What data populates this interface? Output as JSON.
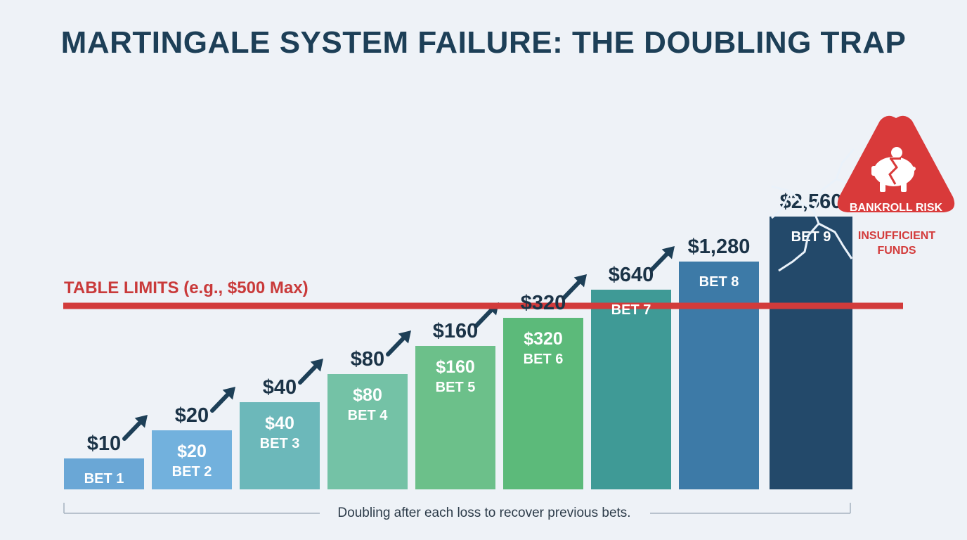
{
  "title": "MARTINGALE SYSTEM FAILURE: THE DOUBLING TRAP",
  "chart_data": {
    "type": "bar",
    "categories": [
      "BET 1",
      "BET 2",
      "BET 3",
      "BET 4",
      "BET 5",
      "BET 6",
      "BET 7",
      "BET 8",
      "BET 9"
    ],
    "values": [
      10,
      20,
      40,
      80,
      160,
      320,
      640,
      1280,
      2560
    ],
    "value_labels": [
      "$10",
      "$20",
      "$40",
      "$80",
      "$160",
      "$320",
      "$640",
      "$1,280",
      "$2,560"
    ],
    "inner_value_labels": [
      "",
      "$20",
      "$40",
      "$80",
      "$160",
      "$320",
      "",
      "",
      ""
    ],
    "colors": [
      "#6aa7d6",
      "#72b1dd",
      "#6cb8ba",
      "#74c2a6",
      "#6cc08a",
      "#5cba7a",
      "#3f9a96",
      "#3d7aa7",
      "#23496a"
    ],
    "table_limit": {
      "label": "TABLE LIMITS (e.g., $500 Max)",
      "color": "#d23b3b"
    },
    "caption": "Doubling after each loss to recover previous bets.",
    "warning": {
      "badge": "BANKROLL RISK",
      "sub_line1": "INSUFFICIENT",
      "sub_line2": "FUNDS",
      "icon": "broken-piggy-bank-icon",
      "color": "#d93a3a"
    },
    "arrow_color": "#1d3f57"
  }
}
